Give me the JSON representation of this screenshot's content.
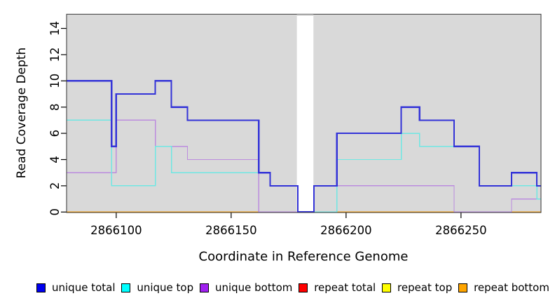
{
  "chart_data": {
    "type": "line",
    "step": true,
    "title": "",
    "xlabel": "Coordinate in Reference Genome",
    "ylabel": "Read Coverage Depth",
    "xlim": [
      2866078.4,
      2866284.8
    ],
    "ylim": [
      0,
      15.07
    ],
    "grid": false,
    "plot_bg": "#d9d9d9",
    "gap_region": {
      "x0": 2866178.6,
      "x1": 2866185.8,
      "fill": "#ffffff",
      "top_edge_color": "#999999"
    },
    "x_ticks": [
      {
        "label": "2866100",
        "value": 2866100
      },
      {
        "label": "2866150",
        "value": 2866150
      },
      {
        "label": "2866200",
        "value": 2866200
      },
      {
        "label": "2866250",
        "value": 2866250
      }
    ],
    "y_ticks": [
      "0",
      "2",
      "4",
      "6",
      "8",
      "10",
      "12",
      "14"
    ],
    "y_tick_values": [
      0,
      2,
      4,
      6,
      8,
      10,
      12,
      14
    ],
    "legend_position": "bottom",
    "legend": [
      {
        "label": "unique total",
        "color": "#0000EE"
      },
      {
        "label": "unique top",
        "color": "#00FFFF"
      },
      {
        "label": "unique bottom",
        "color": "#A020F0"
      },
      {
        "label": "repeat total",
        "color": "#FF0000"
      },
      {
        "label": "repeat top",
        "color": "#FFFF00"
      },
      {
        "label": "repeat bottom",
        "color": "#FFA500"
      }
    ],
    "series": [
      {
        "name": "unique total",
        "line_color": "#3333D8",
        "line_width": 2.2,
        "points": [
          [
            2866078.4,
            10
          ],
          [
            2866098,
            5
          ],
          [
            2866100,
            9
          ],
          [
            2866117,
            10
          ],
          [
            2866124,
            8
          ],
          [
            2866131,
            7
          ],
          [
            2866162,
            3
          ],
          [
            2866167,
            2
          ],
          [
            2866179,
            0
          ],
          [
            2866186,
            2
          ],
          [
            2866196,
            6
          ],
          [
            2866224,
            8
          ],
          [
            2866232,
            7
          ],
          [
            2866247,
            5
          ],
          [
            2866258,
            2
          ],
          [
            2866272,
            3
          ],
          [
            2866283,
            2
          ]
        ]
      },
      {
        "name": "unique top",
        "line_color": "#6FE7E3",
        "line_width": 1.4,
        "points": [
          [
            2866078.4,
            7
          ],
          [
            2866098,
            2
          ],
          [
            2866117,
            5
          ],
          [
            2866124,
            3
          ],
          [
            2866167,
            2
          ],
          [
            2866179,
            0
          ],
          [
            2866196,
            4
          ],
          [
            2866224,
            6
          ],
          [
            2866232,
            5
          ],
          [
            2866258,
            2
          ],
          [
            2866283,
            1
          ]
        ]
      },
      {
        "name": "unique bottom",
        "line_color": "#BC8CDE",
        "line_width": 1.4,
        "points": [
          [
            2866078.4,
            3
          ],
          [
            2866100,
            7
          ],
          [
            2866117,
            5
          ],
          [
            2866131,
            4
          ],
          [
            2866162,
            0
          ],
          [
            2866196,
            2
          ],
          [
            2866247,
            0
          ],
          [
            2866272,
            1
          ]
        ]
      },
      {
        "name": "repeat total",
        "line_color": "#FF0000",
        "line_width": 1.4,
        "points": [
          [
            2866078.4,
            0
          ]
        ]
      },
      {
        "name": "repeat top",
        "line_color": "#FFFF00",
        "line_width": 1.4,
        "points": [
          [
            2866078.4,
            0
          ]
        ]
      },
      {
        "name": "repeat bottom",
        "line_color": "#FFA514",
        "line_width": 1.6,
        "points": [
          [
            2866078.4,
            0
          ]
        ]
      }
    ]
  }
}
